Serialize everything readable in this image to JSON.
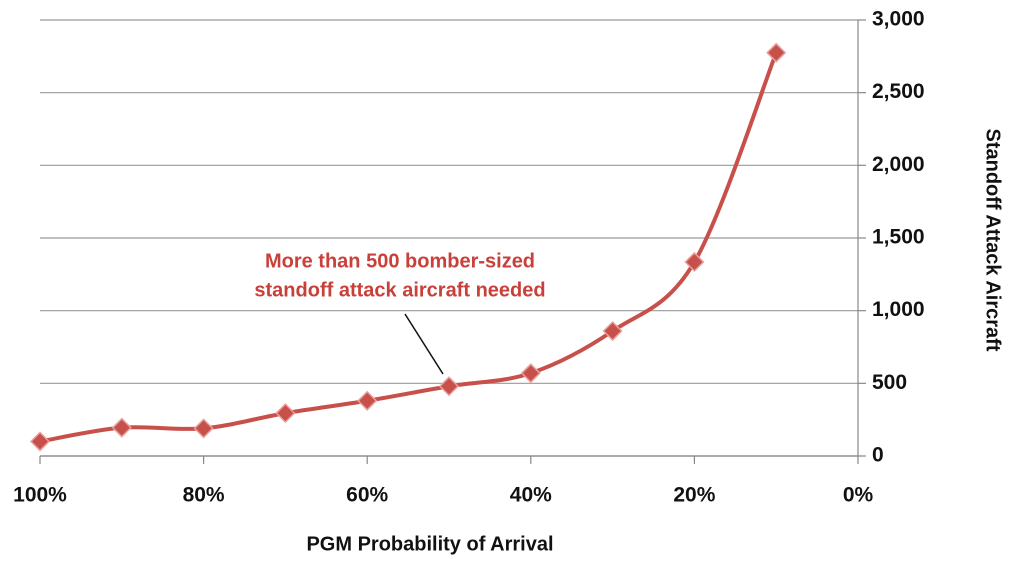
{
  "chart_data": {
    "type": "line",
    "x": [
      100,
      90,
      80,
      70,
      60,
      50,
      40,
      30,
      20,
      10
    ],
    "series": [
      {
        "name": "Standoff Attack Aircraft",
        "color": "#c8504b",
        "values": [
          100,
          195,
          190,
          295,
          380,
          480,
          570,
          860,
          1335,
          2775
        ]
      }
    ],
    "xlim": [
      100,
      0
    ],
    "xticks": [
      {
        "value": 100,
        "label": "100%"
      },
      {
        "value": 80,
        "label": "80%"
      },
      {
        "value": 60,
        "label": "60%"
      },
      {
        "value": 40,
        "label": "40%"
      },
      {
        "value": 20,
        "label": "20%"
      },
      {
        "value": 0,
        "label": "0%"
      }
    ],
    "ylim": [
      0,
      3000
    ],
    "yticks": [
      0,
      500,
      {
        "value": 1000,
        "label": "1,000"
      },
      {
        "value": 1500,
        "label": "1,500"
      },
      {
        "value": 2000,
        "label": "2,000"
      },
      {
        "value": 2500,
        "label": "2,500"
      },
      {
        "value": 3000,
        "label": "3,000"
      }
    ],
    "grid": true,
    "xlabel": "PGM Probability of Arrival",
    "ylabel": "Standoff Attack Aircraft",
    "annotation": [
      "More than 500 bomber-sized",
      "standoff attack aircraft needed"
    ]
  }
}
